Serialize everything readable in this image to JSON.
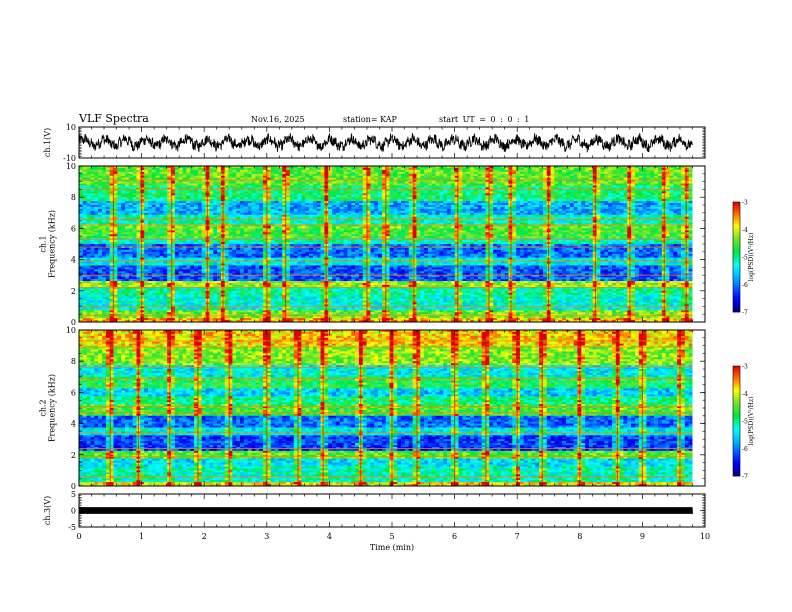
{
  "header": {
    "title": "VLF Spectra",
    "date": "Nov.16, 2025",
    "station_label": "station= KAP",
    "start_label": "start  UT = 0 : 0 : 1"
  },
  "chart_data": [
    {
      "type": "line",
      "id": "ch1-waveform",
      "ylabel": "ch.1(V)",
      "ylim": [
        -10,
        10
      ],
      "yticks": [
        "10",
        "-10"
      ],
      "xlim": [
        0,
        10
      ],
      "series": [
        {
          "name": "ch.1 waveform",
          "mean": 0,
          "amplitude_range": [
            -7,
            6
          ]
        }
      ]
    },
    {
      "type": "heatmap",
      "id": "ch1-spectrogram",
      "ylabel": "ch.1\nFrequency (kHz)",
      "ylim": [
        0,
        10
      ],
      "yticks": [
        "0",
        "2",
        "4",
        "6",
        "8",
        "10"
      ],
      "xlim": [
        0,
        10
      ],
      "data_end_min": 9.8,
      "colorbar": {
        "label": "log(PSD)(V²/Hz)",
        "range": [
          -7,
          -3
        ],
        "ticks": [
          "-3",
          "-4",
          "-5",
          "-6",
          "-7"
        ]
      },
      "bands": [
        {
          "freq": [
            0.0,
            0.3
          ],
          "level": -3.7
        },
        {
          "freq": [
            0.3,
            0.8
          ],
          "level": -4.4
        },
        {
          "freq": [
            0.8,
            1.6
          ],
          "level": -5.3
        },
        {
          "freq": [
            1.6,
            2.3
          ],
          "level": -5.1
        },
        {
          "freq": [
            2.3,
            2.6
          ],
          "level": -4.2
        },
        {
          "freq": [
            2.6,
            3.6
          ],
          "level": -6.2
        },
        {
          "freq": [
            3.6,
            4.1
          ],
          "level": -5.4
        },
        {
          "freq": [
            4.1,
            5.0
          ],
          "level": -6.1
        },
        {
          "freq": [
            5.0,
            5.4
          ],
          "level": -5.2
        },
        {
          "freq": [
            5.4,
            6.0
          ],
          "level": -4.6
        },
        {
          "freq": [
            6.0,
            6.3
          ],
          "level": -4.4
        },
        {
          "freq": [
            6.3,
            6.9
          ],
          "level": -5.2
        },
        {
          "freq": [
            6.9,
            7.8
          ],
          "level": -5.8
        },
        {
          "freq": [
            7.8,
            8.8
          ],
          "level": -4.9
        },
        {
          "freq": [
            8.8,
            10.0
          ],
          "level": -4.5
        }
      ],
      "lines_khz": [
        0.4,
        1.0,
        2.2,
        3.0,
        3.9,
        4.8,
        5.3,
        6.2,
        6.6,
        8.5,
        9.1
      ],
      "spikes_min": [
        0.55,
        1.0,
        1.48,
        2.05,
        2.3,
        3.0,
        3.3,
        3.95,
        4.6,
        4.9,
        5.35,
        6.05,
        6.55,
        6.9,
        7.5,
        8.25,
        8.8,
        9.35,
        9.7
      ]
    },
    {
      "type": "heatmap",
      "id": "ch2-spectrogram",
      "ylabel": "ch.2\nFrequency (kHz)",
      "ylim": [
        0,
        10
      ],
      "yticks": [
        "0",
        "2",
        "4",
        "6",
        "8",
        "10"
      ],
      "xlim": [
        0,
        10
      ],
      "data_end_min": 9.8,
      "colorbar": {
        "label": "log(PSD)(V²/Hz)",
        "range": [
          -7,
          -3
        ],
        "ticks": [
          "-3",
          "-4",
          "-5",
          "-6",
          "-7"
        ]
      },
      "bands": [
        {
          "freq": [
            0.0,
            0.3
          ],
          "level": -3.9
        },
        {
          "freq": [
            0.3,
            1.2
          ],
          "level": -5.2
        },
        {
          "freq": [
            1.2,
            1.8
          ],
          "level": -5.5
        },
        {
          "freq": [
            1.8,
            2.3
          ],
          "level": -4.5
        },
        {
          "freq": [
            2.3,
            3.2
          ],
          "level": -6.3
        },
        {
          "freq": [
            3.2,
            3.8
          ],
          "level": -5.4
        },
        {
          "freq": [
            3.8,
            4.5
          ],
          "level": -6.1
        },
        {
          "freq": [
            4.5,
            5.2
          ],
          "level": -4.6
        },
        {
          "freq": [
            5.2,
            5.8
          ],
          "level": -5.0
        },
        {
          "freq": [
            5.8,
            6.3
          ],
          "level": -5.6
        },
        {
          "freq": [
            6.3,
            7.0
          ],
          "level": -4.8
        },
        {
          "freq": [
            7.0,
            7.8
          ],
          "level": -5.4
        },
        {
          "freq": [
            7.8,
            9.0
          ],
          "level": -4.3
        },
        {
          "freq": [
            9.0,
            10.0
          ],
          "level": -3.8
        }
      ],
      "lines_khz": [
        0.6,
        1.9,
        2.4,
        3.4,
        4.7,
        5.1,
        6.9,
        7.6,
        8.9,
        9.3
      ],
      "spikes_min": [
        0.5,
        0.95,
        1.45,
        1.9,
        2.4,
        3.0,
        3.5,
        3.9,
        4.5,
        5.0,
        5.4,
        6.0,
        6.5,
        7.0,
        7.4,
        8.0,
        8.6,
        9.0,
        9.6
      ]
    },
    {
      "type": "line",
      "id": "ch3-waveform",
      "ylabel": "ch.3(V)",
      "ylim": [
        -5,
        5
      ],
      "yticks": [
        "5",
        "0",
        "-5"
      ],
      "xlim": [
        0,
        10
      ],
      "xticks": [
        "0",
        "1",
        "2",
        "3",
        "4",
        "5",
        "6",
        "7",
        "8",
        "9",
        "10"
      ],
      "xlabel": "Time (min)",
      "series": [
        {
          "name": "ch.3 waveform",
          "mean": 0,
          "amplitude_range": [
            -1,
            1
          ]
        }
      ]
    }
  ]
}
